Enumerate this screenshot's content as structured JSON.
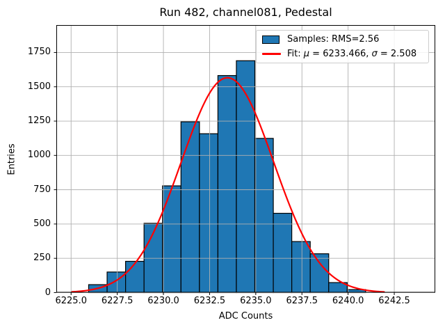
{
  "title": "Run 482, channel081, Pedestal",
  "xlabel": "ADC Counts",
  "ylabel": "Entries",
  "legend": {
    "samples": "Samples: RMS=2.56",
    "fit": {
      "prefix": "Fit: ",
      "mu_symbol": "μ",
      "mu_value": " = 6233.466, ",
      "sigma_symbol": "σ",
      "sigma_value": " = 2.508"
    }
  },
  "colors": {
    "bar_fill": "#1f77b4",
    "bar_edge": "#000000",
    "fit_line": "#ff0000",
    "grid": "#b0b0b0",
    "frame": "#000000",
    "legend_border": "#cccccc"
  },
  "chart_data": {
    "type": "bar",
    "subtype": "histogram-with-gaussian-fit",
    "title": "Run 482, channel081, Pedestal",
    "xlabel": "ADC Counts",
    "ylabel": "Entries",
    "bins": {
      "start": 6225.95,
      "width": 1.0,
      "counts": [
        58,
        150,
        228,
        505,
        778,
        1245,
        1158,
        1582,
        1690,
        1124,
        578,
        372,
        283,
        73,
        22
      ]
    },
    "fit": {
      "mu": 6233.466,
      "sigma": 2.508,
      "amplitude": 1566,
      "x_range": [
        6225.05,
        6241.95
      ]
    },
    "x_ticks": [
      6225.0,
      6227.5,
      6230.0,
      6232.5,
      6235.0,
      6237.5,
      6240.0,
      6242.5
    ],
    "x_tick_labels": [
      "6225.0",
      "6227.5",
      "6230.0",
      "6232.5",
      "6235.0",
      "6237.5",
      "6240.0",
      "6242.5"
    ],
    "y_ticks": [
      0,
      250,
      500,
      750,
      1000,
      1250,
      1500,
      1750
    ],
    "y_tick_labels": [
      "0",
      "250",
      "500",
      "750",
      "1000",
      "1250",
      "1500",
      "1750"
    ],
    "xlim": [
      6224.2,
      6244.72
    ],
    "ylim": [
      0,
      1950
    ],
    "grid": true,
    "grid_above_bars": true,
    "legend_position": "upper right"
  }
}
